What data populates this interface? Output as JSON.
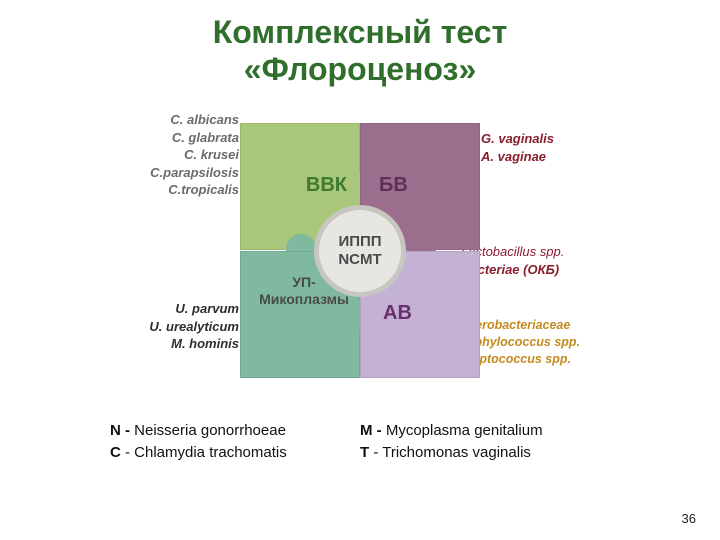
{
  "title": {
    "line1": "Комплексный тест",
    "line2": "«Флороценоз»",
    "color": "#2f6e2b",
    "fontsize": 32
  },
  "colors": {
    "tl_fill": "#a8c77a",
    "tl_text": "#3f7a2f",
    "tr_fill": "#9c6e8d",
    "tr_text": "#5e2f57",
    "bl_fill": "#7eb9a0",
    "bl_text": "#4a4a4a",
    "br_fill": "#c3b2d4",
    "br_text": "#6a2f6d",
    "center_bg": "#e8e6e2",
    "center_border": "#c8c6c0",
    "center_text": "#4a4a4a",
    "side_tl": "#6b6b6b",
    "side_tr": "#8a1f2f",
    "side_mr": "#8a1f2f",
    "side_bl": "#2f2f2f",
    "side_br": "#c48a1f"
  },
  "pieces": {
    "tl": "ВВК",
    "tr": "БВ",
    "bl_line1": "УП-",
    "bl_line2": "Микоплазмы",
    "br": "АВ"
  },
  "center": {
    "line1": "ИППП",
    "line2": "NCMT"
  },
  "side": {
    "tl": [
      "C. albicans",
      "C. glabrata",
      "C. krusei",
      "C.parapsilosis",
      "C.tropicalis"
    ],
    "tr": [
      "G. vaginalis",
      "A. vaginae"
    ],
    "mr": [
      "Lactobacillus spp.",
      "Bacteriae (ОКБ)"
    ],
    "bl": [
      "U. parvum",
      "U. urealyticum",
      "M. hominis"
    ],
    "br": [
      "Enterobacteriaceae",
      "Staphylococcus  spp.",
      "Streptococcus spp."
    ]
  },
  "legend": {
    "n_key": "N - ",
    "n_val": "Neisseria gonorrhoeae",
    "m_key": "M - ",
    "m_val": "Mycoplasma genitalium",
    "c_key": "C ",
    "c_val": "- Chlamydia trachomatis",
    "t_key": "T ",
    "t_val": "- Trichomonas vaginalis"
  },
  "page": "36"
}
